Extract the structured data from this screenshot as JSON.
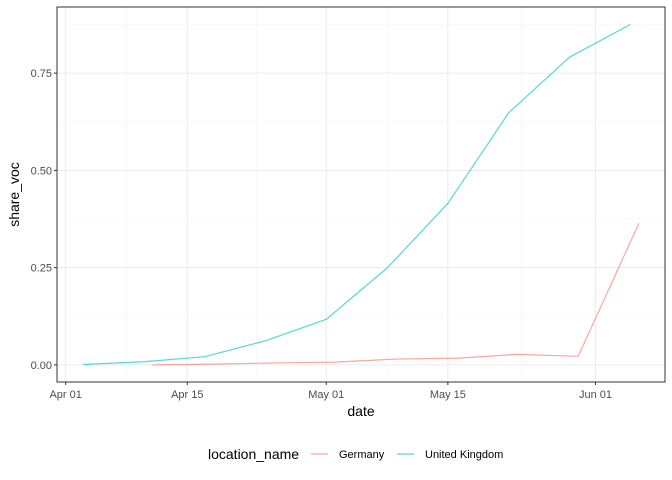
{
  "chart_data": {
    "type": "line",
    "xlabel": "date",
    "ylabel": "share_voc",
    "x_ticks": [
      {
        "date": "2021-04-01",
        "label": "Apr 01"
      },
      {
        "date": "2021-04-15",
        "label": "Apr 15"
      },
      {
        "date": "2021-05-01",
        "label": "May 01"
      },
      {
        "date": "2021-05-15",
        "label": "May 15"
      },
      {
        "date": "2021-06-01",
        "label": "Jun 01"
      }
    ],
    "y_ticks": [
      {
        "value": 0,
        "label": "0.00"
      },
      {
        "value": 0.25,
        "label": "0.25"
      },
      {
        "value": 0.5,
        "label": "0.50"
      },
      {
        "value": 0.75,
        "label": "0.75"
      }
    ],
    "xlim": [
      "2021-03-31",
      "2021-06-09"
    ],
    "ylim": [
      -0.044,
      0.92
    ],
    "grid": true,
    "legend_position": "bottom",
    "legend_title": "location_name",
    "series": [
      {
        "name": "Germany",
        "color": "#F8766D",
        "points": [
          {
            "x": "2021-04-11",
            "y": 0.0
          },
          {
            "x": "2021-04-18",
            "y": 0.002
          },
          {
            "x": "2021-04-25",
            "y": 0.005
          },
          {
            "x": "2021-05-02",
            "y": 0.007
          },
          {
            "x": "2021-05-09",
            "y": 0.015
          },
          {
            "x": "2021-05-16",
            "y": 0.017
          },
          {
            "x": "2021-05-23",
            "y": 0.027
          },
          {
            "x": "2021-05-30",
            "y": 0.022
          },
          {
            "x": "2021-06-06",
            "y": 0.364
          }
        ]
      },
      {
        "name": "United Kingdom",
        "color": "#00BFC4",
        "points": [
          {
            "x": "2021-04-03",
            "y": 0.001
          },
          {
            "x": "2021-04-10",
            "y": 0.008
          },
          {
            "x": "2021-04-17",
            "y": 0.021
          },
          {
            "x": "2021-04-24",
            "y": 0.062
          },
          {
            "x": "2021-05-01",
            "y": 0.117
          },
          {
            "x": "2021-05-08",
            "y": 0.249
          },
          {
            "x": "2021-05-15",
            "y": 0.415
          },
          {
            "x": "2021-05-22",
            "y": 0.648
          },
          {
            "x": "2021-05-29",
            "y": 0.791
          },
          {
            "x": "2021-06-05",
            "y": 0.875
          }
        ]
      }
    ]
  }
}
